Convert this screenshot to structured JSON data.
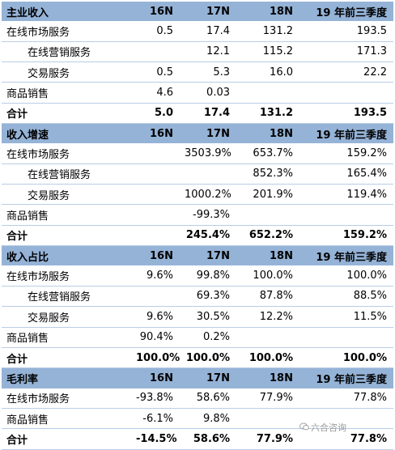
{
  "sections": [
    {
      "header": [
        "主业收入",
        "16N",
        "17N",
        "18N",
        "19 年前三季度"
      ],
      "rows": [
        {
          "label": "在线市场服务",
          "values": [
            "0.5",
            "17.4",
            "131.2",
            "193.5"
          ],
          "indent": false,
          "total": false
        },
        {
          "label": "在线营销服务",
          "values": [
            "",
            "12.1",
            "115.2",
            "171.3"
          ],
          "indent": true,
          "total": false
        },
        {
          "label": "交易服务",
          "values": [
            "0.5",
            "5.3",
            "16.0",
            "22.2"
          ],
          "indent": true,
          "total": false
        },
        {
          "label": "商品销售",
          "values": [
            "4.6",
            "0.03",
            "",
            ""
          ],
          "indent": false,
          "total": false
        },
        {
          "label": "合计",
          "values": [
            "5.0",
            "17.4",
            "131.2",
            "193.5"
          ],
          "indent": false,
          "total": true
        }
      ]
    },
    {
      "header": [
        "收入增速",
        "16N",
        "17N",
        "18N",
        "19 年前三季度"
      ],
      "rows": [
        {
          "label": "在线市场服务",
          "values": [
            "",
            "3503.9%",
            "653.7%",
            "159.2%"
          ],
          "indent": false,
          "total": false
        },
        {
          "label": "在线营销服务",
          "values": [
            "",
            "",
            "852.3%",
            "165.4%"
          ],
          "indent": true,
          "total": false
        },
        {
          "label": "交易服务",
          "values": [
            "",
            "1000.2%",
            "201.9%",
            "119.4%"
          ],
          "indent": true,
          "total": false
        },
        {
          "label": "商品销售",
          "values": [
            "",
            "-99.3%",
            "",
            ""
          ],
          "indent": false,
          "total": false
        },
        {
          "label": "合计",
          "values": [
            "",
            "245.4%",
            "652.2%",
            "159.2%"
          ],
          "indent": false,
          "total": true
        }
      ]
    },
    {
      "header": [
        "收入占比",
        "16N",
        "17N",
        "18N",
        "19 年前三季度"
      ],
      "rows": [
        {
          "label": "在线市场服务",
          "values": [
            "9.6%",
            "99.8%",
            "100.0%",
            "100.0%"
          ],
          "indent": false,
          "total": false
        },
        {
          "label": "在线营销服务",
          "values": [
            "",
            "69.3%",
            "87.8%",
            "88.5%"
          ],
          "indent": true,
          "total": false
        },
        {
          "label": "交易服务",
          "values": [
            "9.6%",
            "30.5%",
            "12.2%",
            "11.5%"
          ],
          "indent": true,
          "total": false
        },
        {
          "label": "商品销售",
          "values": [
            "90.4%",
            "0.2%",
            "",
            ""
          ],
          "indent": false,
          "total": false
        },
        {
          "label": "合计",
          "values": [
            "100.0%",
            "100.0%",
            "100.0%",
            "100.0%"
          ],
          "indent": false,
          "total": true
        }
      ]
    },
    {
      "header": [
        "毛利率",
        "16N",
        "17N",
        "18N",
        "19 年前三季度"
      ],
      "rows": [
        {
          "label": "在线市场服务",
          "values": [
            "-93.8%",
            "58.6%",
            "77.9%",
            "77.8%"
          ],
          "indent": false,
          "total": false
        },
        {
          "label": "商品销售",
          "values": [
            "-6.1%",
            "9.8%",
            "",
            ""
          ],
          "indent": false,
          "total": false
        },
        {
          "label": "合计",
          "values": [
            "-14.5%",
            "58.6%",
            "77.9%",
            "77.8%"
          ],
          "indent": false,
          "total": true
        }
      ]
    }
  ],
  "watermark": "六合咨询",
  "colors": {
    "header_bg": "#95b3d7",
    "row_line": "#b9cde5"
  }
}
